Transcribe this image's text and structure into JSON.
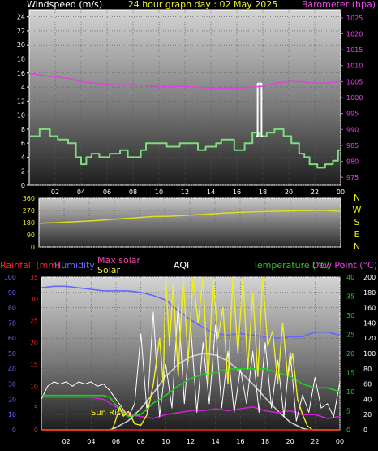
{
  "chart_data": [
    {
      "type": "line",
      "title": "24 hour graph day : 02 May 2025",
      "x_ticks": [
        "02",
        "04",
        "06",
        "08",
        "10",
        "12",
        "14",
        "16",
        "18",
        "20",
        "22",
        "00"
      ],
      "left_axis": {
        "label": "Windspeed (m/s)",
        "ticks": [
          0,
          2,
          4,
          6,
          8,
          10,
          12,
          14,
          16,
          18,
          20,
          22,
          24
        ],
        "range": [
          0,
          25
        ],
        "color": "#ffffff"
      },
      "right_axis": {
        "label": "Barometer (hpa)",
        "ticks": [
          975,
          980,
          985,
          990,
          995,
          1000,
          1005,
          1010,
          1015,
          1020,
          1025
        ],
        "range": [
          972.5,
          1027.5
        ],
        "color": "#ee44ee"
      },
      "series": [
        {
          "name": "Windspeed (m/s)",
          "color": "#7ddc7d",
          "axis": "left",
          "x": [
            0,
            0.8,
            0.8,
            1.6,
            1.6,
            2.2,
            2.2,
            3.0,
            3.0,
            3.6,
            3.6,
            4.0,
            4.0,
            4.4,
            4.4,
            4.8,
            4.8,
            5.4,
            5.4,
            6.2,
            6.2,
            7.0,
            7.0,
            7.6,
            7.6,
            8.6,
            8.6,
            9.0,
            9.0,
            10.6,
            10.6,
            11.6,
            11.6,
            13.0,
            13.0,
            13.6,
            13.6,
            14.4,
            14.4,
            14.8,
            14.8,
            15.8,
            15.8,
            16.6,
            16.6,
            17.2,
            17.2,
            17.7,
            17.7,
            18.3,
            18.3,
            18.9,
            18.9,
            19.6,
            19.6,
            20.2,
            20.2,
            20.8,
            20.8,
            21.2,
            21.2,
            21.6,
            21.6,
            22.2,
            22.2,
            22.8,
            22.8,
            23.4,
            23.4,
            23.8,
            23.8,
            24
          ],
          "y": [
            7,
            7,
            8,
            8,
            7,
            7,
            6.5,
            6.5,
            6,
            6,
            4,
            4,
            3,
            3,
            4,
            4,
            4.5,
            4.5,
            4,
            4,
            4.5,
            4.5,
            5,
            5,
            4,
            4,
            5,
            5,
            6,
            6,
            5.5,
            5.5,
            6,
            6,
            5,
            5,
            5.5,
            5.5,
            6,
            6,
            6.5,
            6.5,
            5,
            5,
            6,
            6,
            7.5,
            7.5,
            7,
            7,
            7.5,
            7.5,
            8,
            8,
            7,
            7,
            6,
            6,
            4.5,
            4.5,
            4,
            4,
            3,
            3,
            2.5,
            2.5,
            3,
            3,
            3.5,
            3.5,
            5,
            5
          ]
        },
        {
          "name": "Wind Gust spike",
          "color": "#ffffff",
          "axis": "left",
          "x": [
            17.5,
            17.6,
            17.6,
            17.9,
            17.9,
            18.0
          ],
          "y": [
            7,
            7,
            14.5,
            14.5,
            7,
            7
          ]
        },
        {
          "name": "Barometer (hpa)",
          "color": "#dd44dd",
          "axis": "right",
          "x": [
            0,
            1,
            2,
            3,
            4,
            5,
            6,
            8,
            10,
            12,
            14,
            16,
            18,
            19,
            20,
            21,
            22,
            23,
            24
          ],
          "y": [
            1007.5,
            1007,
            1006.5,
            1006,
            1005,
            1004.5,
            1004,
            1004,
            1003.5,
            1003.5,
            1003,
            1003,
            1003.5,
            1004.5,
            1005,
            1005,
            1004.5,
            1004.5,
            1005
          ]
        }
      ]
    },
    {
      "type": "line",
      "title": "",
      "left_axis": {
        "ticks": [
          0,
          90,
          180,
          270,
          360
        ],
        "range": [
          0,
          360
        ]
      },
      "compass_labels": [
        "N",
        "W",
        "S",
        "E",
        "N"
      ],
      "series": [
        {
          "name": "Wind direction",
          "color": "#dddd22",
          "x": [
            0,
            1.5,
            3,
            4.5,
            6,
            7.5,
            9,
            10.5,
            12,
            13.5,
            15,
            16.5,
            18,
            19.5,
            21,
            22.5,
            24
          ],
          "y": [
            175,
            180,
            188,
            195,
            205,
            215,
            225,
            228,
            235,
            243,
            252,
            258,
            262,
            265,
            268,
            272,
            262
          ]
        }
      ]
    },
    {
      "type": "line",
      "title": "",
      "header_labels": {
        "rainfall": "Rainfall (mm)",
        "humidity": "Humidity",
        "max_solar": "Max solar",
        "solar": "Solar",
        "aqi": "AQI",
        "temperature": "Temperature (°C)",
        "dew_point": "Dew Point (°C)",
        "sunrise": "Sun Rise"
      },
      "x_ticks": [
        "02",
        "04",
        "06",
        "08",
        "10",
        "12",
        "14",
        "16",
        "18",
        "20",
        "22",
        "00"
      ],
      "axes": {
        "humidity": {
          "ticks": [
            0,
            10,
            20,
            30,
            40,
            50,
            60,
            70,
            80,
            90,
            100
          ],
          "range": [
            0,
            100
          ]
        },
        "rainfall": {
          "ticks": [
            0,
            5,
            10,
            15,
            20,
            25,
            30,
            35
          ],
          "range": [
            0,
            35
          ]
        },
        "temperature": {
          "ticks": [
            0,
            5,
            10,
            15,
            20,
            25,
            30,
            35,
            40
          ],
          "range": [
            0,
            40
          ]
        },
        "solar": {
          "ticks": [
            0,
            20,
            40,
            60,
            80,
            100,
            120,
            140,
            160,
            180,
            200
          ],
          "range": [
            0,
            200
          ]
        }
      },
      "series": [
        {
          "name": "Humidity",
          "color": "#6666ff",
          "axis": "humidity",
          "x": [
            0,
            1,
            2,
            3,
            4,
            5,
            6,
            7,
            8,
            9,
            10,
            11,
            12,
            13,
            14,
            15,
            16,
            17,
            18,
            19,
            20,
            21,
            22,
            23,
            24
          ],
          "y": [
            93,
            94,
            94,
            93,
            92,
            91,
            91,
            91,
            90,
            88,
            85,
            78,
            72,
            67,
            63,
            62,
            63,
            62,
            61,
            60,
            61,
            61,
            64,
            64,
            62
          ]
        },
        {
          "name": "Temperature (°C)",
          "color": "#22cc22",
          "axis": "temperature",
          "x": [
            0,
            2,
            4,
            5,
            5.5,
            6,
            6.5,
            7,
            8,
            9,
            10,
            11,
            12,
            13,
            14,
            15,
            16,
            17,
            18,
            19,
            20,
            21,
            22,
            23,
            24
          ],
          "y": [
            9,
            9,
            9,
            9,
            8.5,
            6.5,
            4.5,
            3.5,
            4,
            7,
            9,
            11.5,
            13.5,
            14.5,
            15,
            16,
            16,
            16,
            16,
            15,
            14,
            12,
            11,
            11,
            10
          ]
        },
        {
          "name": "Dew Point (°C)",
          "color": "#cc22cc",
          "axis": "temperature",
          "x": [
            0,
            1,
            2,
            3,
            4,
            5,
            6,
            7,
            8,
            9,
            10,
            11,
            12,
            13,
            14,
            15,
            16,
            17,
            18,
            19,
            20,
            21,
            22,
            23,
            24
          ],
          "y": [
            8.5,
            8.5,
            8.5,
            8.5,
            8.5,
            8,
            6,
            4,
            3.5,
            3,
            4,
            4.5,
            5,
            5,
            5.5,
            5,
            5.5,
            6,
            5,
            4.5,
            5,
            4,
            4,
            3,
            3.5
          ]
        },
        {
          "name": "Max solar",
          "color": "#cccccc",
          "axis": "solar",
          "x": [
            5.5,
            6,
            7,
            8,
            9,
            10,
            11,
            12,
            13,
            14,
            15,
            16,
            17,
            18,
            19,
            20,
            21,
            21.5
          ],
          "y": [
            0,
            3,
            12,
            28,
            48,
            70,
            86,
            96,
            100,
            98,
            90,
            76,
            60,
            42,
            25,
            10,
            2,
            0
          ]
        },
        {
          "name": "Solar",
          "color": "#eeee22",
          "axis": "solar",
          "x": [
            0,
            5.7,
            6,
            6.3,
            6.6,
            7,
            7.5,
            8,
            8.5,
            9,
            9.5,
            9.8,
            10,
            10.3,
            10.6,
            11,
            11.4,
            11.8,
            12.2,
            12.6,
            13,
            13.4,
            13.8,
            14.2,
            14.6,
            15,
            15.4,
            15.8,
            16.2,
            16.6,
            17,
            17.4,
            17.8,
            18.2,
            18.6,
            19,
            19.4,
            19.8,
            20.2,
            20.6,
            21,
            21.4,
            21.8,
            24
          ],
          "y": [
            0,
            0,
            14,
            30,
            18,
            24,
            8,
            6,
            20,
            60,
            120,
            60,
            200,
            110,
            190,
            70,
            200,
            90,
            200,
            140,
            200,
            60,
            200,
            120,
            160,
            60,
            200,
            100,
            200,
            80,
            180,
            70,
            200,
            110,
            130,
            60,
            140,
            70,
            100,
            40,
            20,
            5,
            0,
            0
          ]
        },
        {
          "name": "AQI",
          "color": "#ffffff",
          "axis": "rainfall",
          "x": [
            0,
            0.5,
            1,
            1.5,
            2,
            2.5,
            3,
            3.5,
            4,
            4.5,
            5,
            5.5,
            6,
            6.5,
            7,
            7.5,
            8,
            8.5,
            9,
            9.5,
            10,
            10.5,
            11,
            11.5,
            12,
            12.5,
            13,
            13.5,
            14,
            14.5,
            15,
            15.5,
            16,
            16.5,
            17,
            17.5,
            18,
            18.5,
            19,
            19.5,
            20,
            20.5,
            21,
            21.5,
            22,
            22.5,
            23,
            23.5,
            24
          ],
          "y": [
            7,
            10,
            11,
            10.5,
            11,
            10,
            11,
            10.5,
            11,
            10,
            10.5,
            9,
            7,
            5,
            3,
            6,
            22,
            4,
            27,
            3,
            15,
            5,
            29,
            6,
            24,
            4,
            20,
            6,
            24,
            5,
            18,
            4,
            14,
            6,
            18,
            4,
            20,
            5,
            16,
            3,
            18,
            2,
            8,
            4,
            12,
            5,
            6,
            3,
            11
          ]
        },
        {
          "name": "Rainfall (mm)",
          "color": "#ff2222",
          "axis": "rainfall",
          "x": [
            0,
            24
          ],
          "y": [
            0,
            0
          ]
        }
      ]
    }
  ]
}
